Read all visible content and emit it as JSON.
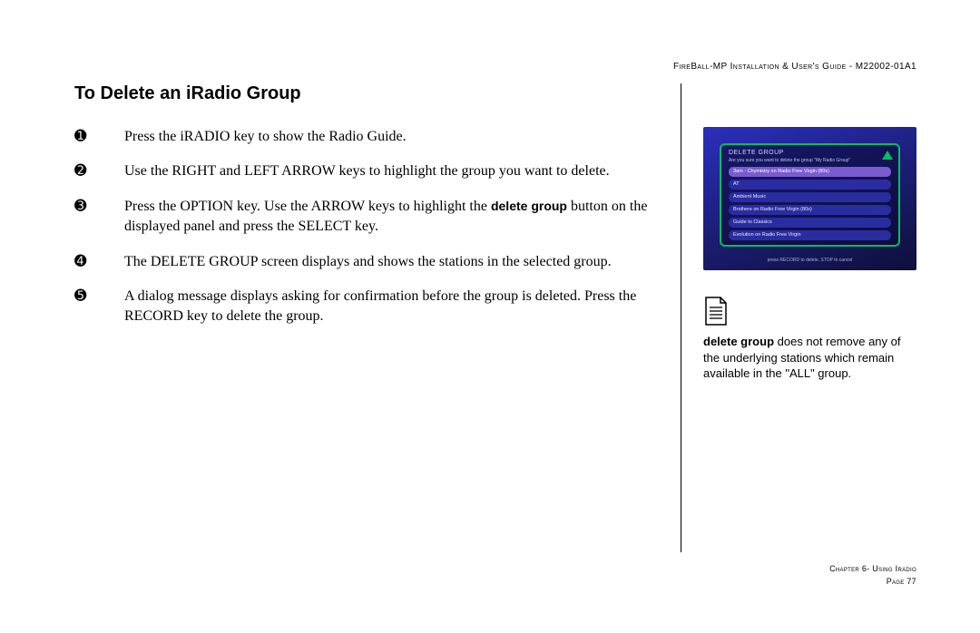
{
  "header": "FireBall-MP Installation & User's Guide - M22002-01A1",
  "title": "To Delete an iRadio Group",
  "steps": [
    {
      "marker": "➊",
      "html": "Press the iRADIO key to show the Radio Guide."
    },
    {
      "marker": "➋",
      "html": "Use the RIGHT and LEFT ARROW keys to highlight the group you want to delete."
    },
    {
      "marker": "➌",
      "html": "Press the OPTION key. Use the ARROW keys to highlight the <b>delete group</b> button on the displayed panel and press the SELECT key."
    },
    {
      "marker": "➍",
      "html": "The DELETE GROUP screen displays and shows the stations in the selected group."
    },
    {
      "marker": "➎",
      "html": "A dialog message displays asking for confirmation before the group is deleted. Press the RECORD key to delete the group."
    }
  ],
  "tv": {
    "panel_title": "DELETE GROUP",
    "panel_sub": "Are you sure you want to delete the group \"My Radio Group\"",
    "rows": [
      {
        "label": "3am - Chymistry on Radio Free Virgin (80s)",
        "selected": true
      },
      {
        "label": "AT",
        "selected": false
      },
      {
        "label": "Ambient Music",
        "selected": false
      },
      {
        "label": "Brothers on Radio Free Virgin (80s)",
        "selected": false
      },
      {
        "label": "Guide to Classics",
        "selected": false
      },
      {
        "label": "Evolution on Radio Free Virgin",
        "selected": false
      }
    ],
    "footer": "press RECORD to delete, STOP to cancel"
  },
  "note_html": "<b>delete group</b> does not remove any of the underlying stations which remain available in the \"ALL\" group.",
  "footer": {
    "chapter": "Chapter 6- Using Iradio",
    "page": "Page 77"
  }
}
